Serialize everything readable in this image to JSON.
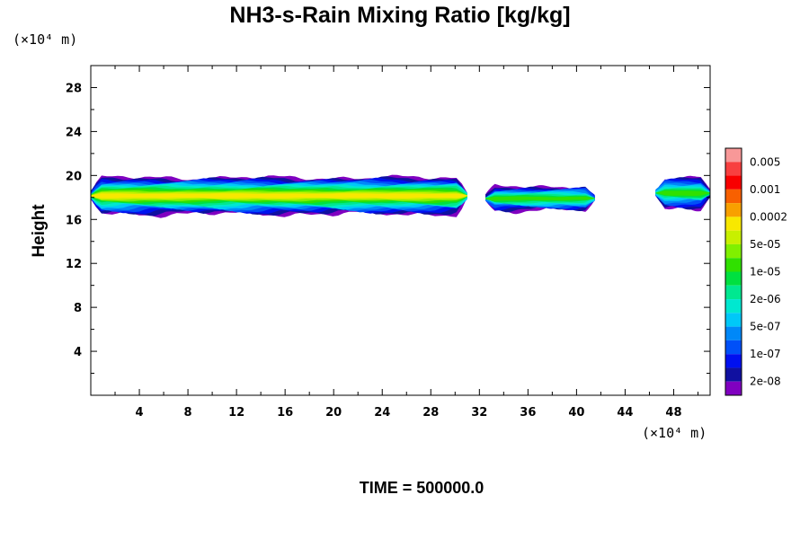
{
  "chart_data": {
    "type": "heatmap",
    "title": "NH3-s-Rain Mixing Ratio [kg/kg]",
    "ylabel": "Height",
    "xlabel": "",
    "y_unit_label": "(×10⁴ m)",
    "x_unit_label": "(×10⁴ m)",
    "xlim": [
      0,
      51
    ],
    "ylim": [
      0,
      30
    ],
    "x_ticks": [
      "4",
      "8",
      "12",
      "16",
      "20",
      "24",
      "28",
      "32",
      "36",
      "40",
      "44",
      "48"
    ],
    "y_ticks": [
      "4",
      "8",
      "12",
      "16",
      "20",
      "24",
      "28"
    ],
    "colorbar": {
      "labels": [
        "0.005",
        "0.001",
        "0.0002",
        "5e-05",
        "1e-05",
        "2e-06",
        "5e-07",
        "1e-07",
        "2e-08"
      ],
      "colors": [
        "#f89898",
        "#f84040",
        "#f80000",
        "#f86000",
        "#f8a000",
        "#f8e800",
        "#c8f000",
        "#80f000",
        "#30e000",
        "#00e040",
        "#00e890",
        "#00e8d0",
        "#00c8f8",
        "#0088f8",
        "#0050f8",
        "#0010f0",
        "#1010a0",
        "#8000c0"
      ]
    },
    "regions": [
      {
        "x": [
          0,
          31
        ],
        "y_base": 16.5,
        "y_top": 19.8,
        "peak_level": "5e-05"
      },
      {
        "x": [
          32.5,
          41.5
        ],
        "y_base": 16.8,
        "y_top": 19.0,
        "peak_level": "1e-05"
      },
      {
        "x": [
          46.5,
          51
        ],
        "y_base": 17.0,
        "y_top": 19.8,
        "peak_level": "1e-05"
      }
    ],
    "footer": "TIME = 500000.0"
  }
}
